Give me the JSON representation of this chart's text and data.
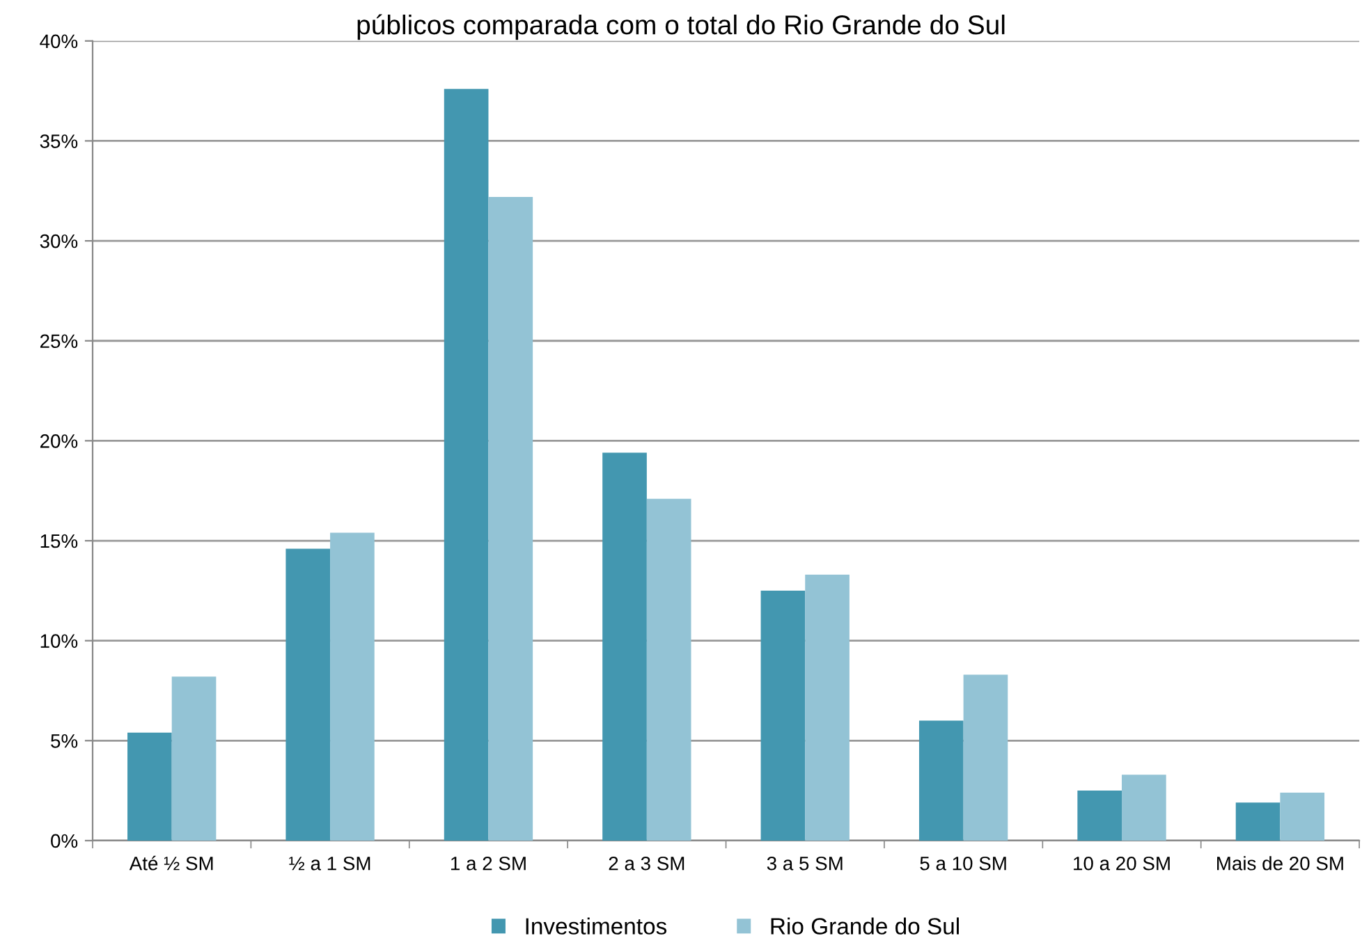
{
  "chart_data": {
    "type": "bar",
    "title": "públicos comparada com o total do Rio Grande do Sul",
    "categories": [
      "Até ½ SM",
      "½ a 1 SM",
      "1 a 2 SM",
      "2 a 3 SM",
      "3 a 5 SM",
      "5 a 10 SM",
      "10 a 20 SM",
      "Mais de 20 SM"
    ],
    "series": [
      {
        "name": "Investimentos",
        "color": "#4397b0",
        "values": [
          5.4,
          14.6,
          37.6,
          19.4,
          12.5,
          6.0,
          2.5,
          1.9
        ]
      },
      {
        "name": "Rio Grande do Sul",
        "color": "#93c3d5",
        "values": [
          8.2,
          15.4,
          32.2,
          17.1,
          13.3,
          8.3,
          3.3,
          2.4
        ]
      }
    ],
    "ylim": [
      0,
      40
    ],
    "yticks": [
      {
        "value": 0,
        "label": "0%"
      },
      {
        "value": 5,
        "label": "5%"
      },
      {
        "value": 10,
        "label": "10%"
      },
      {
        "value": 15,
        "label": "15%"
      },
      {
        "value": 20,
        "label": "20%"
      },
      {
        "value": 25,
        "label": "25%"
      },
      {
        "value": 30,
        "label": "30%"
      },
      {
        "value": 35,
        "label": "35%"
      },
      {
        "value": 40,
        "label": "40%"
      }
    ],
    "grid": "y",
    "legend": "bottom"
  }
}
